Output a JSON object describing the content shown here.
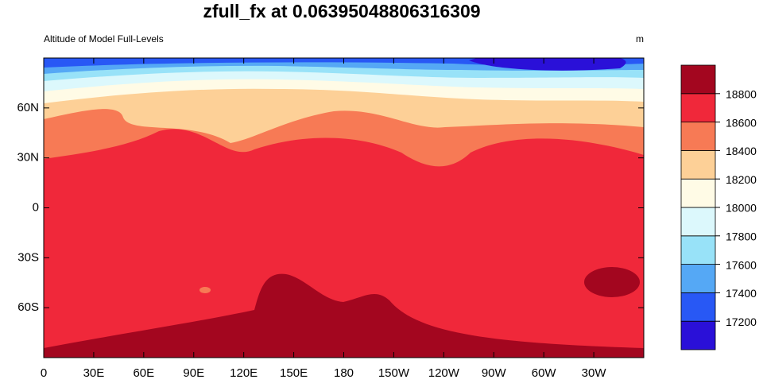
{
  "chart_data": {
    "type": "contour",
    "title": "zfull_fx at 0.06395048806316309",
    "subtitle_left": "Altitude of Model Full-Levels",
    "subtitle_right": "m",
    "xlim": [
      0,
      360
    ],
    "xticks": [
      0,
      {
        "value": 30,
        "label": "30E"
      },
      {
        "value": 60,
        "label": "60E"
      },
      {
        "value": 90,
        "label": "90E"
      },
      {
        "value": 120,
        "label": "120E"
      },
      {
        "value": 150,
        "label": "150E"
      },
      {
        "value": 180,
        "label": "180"
      },
      {
        "value": 210,
        "label": "150W"
      },
      {
        "value": 240,
        "label": "120W"
      },
      {
        "value": 270,
        "label": "90W"
      },
      {
        "value": 300,
        "label": "60W"
      },
      {
        "value": 330,
        "label": "30W"
      }
    ],
    "ylim": [
      -90,
      90
    ],
    "yticks": [
      {
        "value": -60,
        "label": "60S"
      },
      {
        "value": -30,
        "label": "30S"
      },
      0,
      {
        "value": 30,
        "label": "30N"
      },
      {
        "value": 60,
        "label": "60N"
      }
    ],
    "levels": [
      17200,
      17400,
      17600,
      17800,
      18000,
      18200,
      18400,
      18600,
      18800
    ],
    "colors": [
      "#2a10d8",
      "#2858f5",
      "#55a8f5",
      "#98e2f8",
      "#dcf8fc",
      "#fffbe6",
      "#fdd097",
      "#f77a55",
      "#f0283a",
      "#a3061f"
    ]
  }
}
